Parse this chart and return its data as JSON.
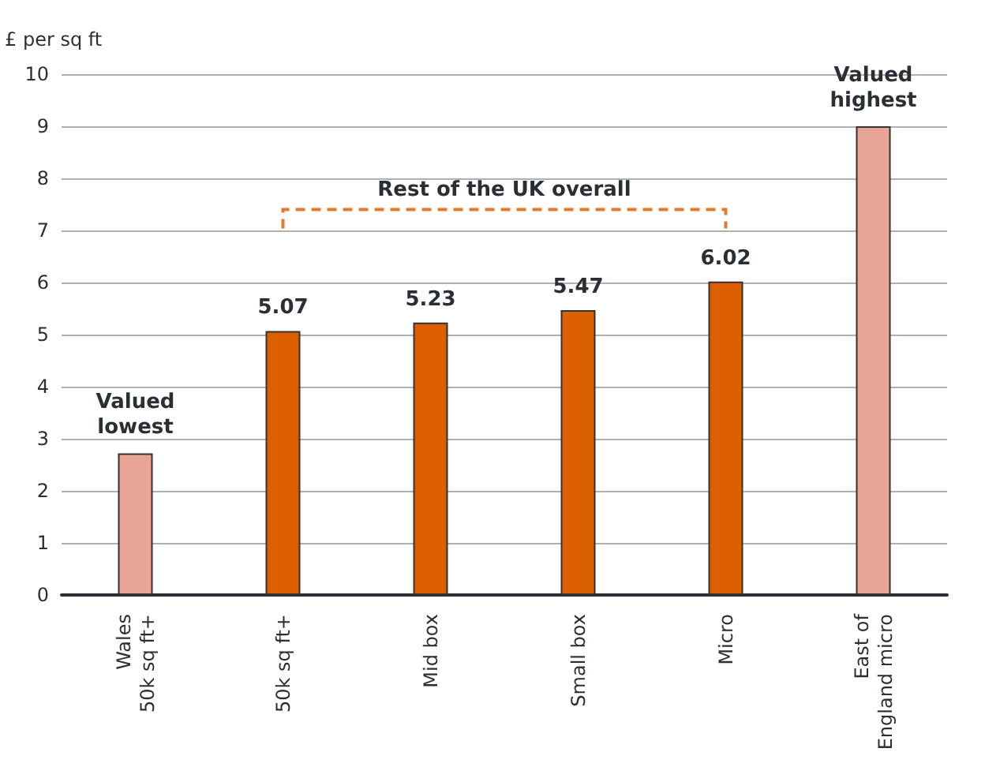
{
  "chart_data": {
    "type": "bar",
    "ylabel": "£ per sq ft",
    "categories": [
      "Wales\n50k sq ft+",
      "50k sq ft+",
      "Mid box",
      "Small box",
      "Micro",
      "East of\nEngland micro"
    ],
    "values": [
      2.72,
      5.07,
      5.23,
      5.47,
      6.02,
      9.0
    ],
    "colors": [
      "#e8a595",
      "#dc5f00",
      "#dc5f00",
      "#dc5f00",
      "#dc5f00",
      "#e8a595"
    ],
    "value_labels": [
      null,
      "5.07",
      "5.23",
      "5.47",
      "6.02",
      null
    ],
    "ylim": [
      0,
      10
    ],
    "yticks": [
      0,
      1,
      2,
      3,
      4,
      5,
      6,
      7,
      8,
      9,
      10
    ],
    "grid": "y",
    "annotations": [
      {
        "text": "Valued\nlowest",
        "x": "Wales\n50k sq ft+",
        "y": 2.72
      },
      "Rest of the UK overall",
      {
        "text": "Valued\nhighest",
        "x": "East of\nEngland micro",
        "y": 9.0
      }
    ]
  }
}
